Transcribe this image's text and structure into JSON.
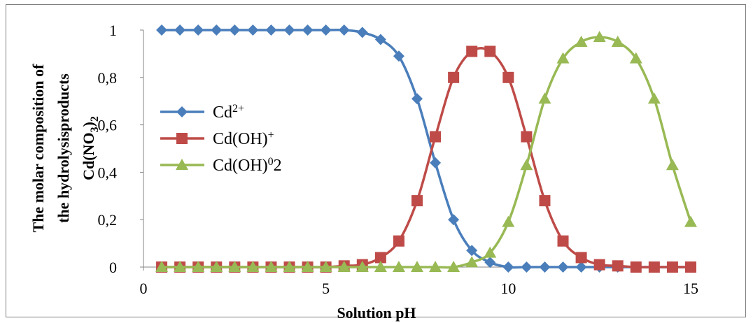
{
  "chart_data": {
    "type": "line",
    "xlabel": "Solution pH",
    "ylabel_lines": [
      "The molar composition of",
      "the hydrolysisproducts",
      "Cd(NO3)2"
    ],
    "xlim": [
      0,
      15
    ],
    "ylim": [
      0,
      1
    ],
    "xticks": [
      "0",
      "5",
      "10",
      "15"
    ],
    "yticks": [
      "0",
      "0,2",
      "0,4",
      "0,6",
      "0,8",
      "1"
    ],
    "grid": false,
    "legend_position": "left-middle",
    "x": [
      0.5,
      1,
      1.5,
      2,
      2.5,
      3,
      3.5,
      4,
      4.5,
      5,
      5.5,
      6,
      6.5,
      7,
      7.5,
      8,
      8.5,
      9,
      9.5,
      10,
      10.5,
      11,
      11.5,
      12,
      12.5,
      13,
      13.5,
      14,
      14.5,
      15
    ],
    "series": [
      {
        "name": "Cd2+",
        "label_base": "Cd",
        "label_sup": "2+",
        "label_sub": "",
        "color": "#4a7ebb",
        "marker": "diamond",
        "values": [
          1,
          1,
          1,
          1,
          1,
          1,
          1,
          1,
          1,
          1,
          1,
          0.99,
          0.96,
          0.89,
          0.71,
          0.44,
          0.2,
          0.07,
          0.02,
          0,
          0,
          0,
          0,
          0,
          0,
          0,
          0,
          0,
          0,
          0
        ]
      },
      {
        "name": "Cd(OH)+",
        "label_base": "Cd(OH)",
        "label_sup": "+",
        "label_sub": "",
        "color": "#be4b48",
        "marker": "square",
        "values": [
          0,
          0,
          0,
          0,
          0,
          0,
          0,
          0,
          0,
          0,
          0.005,
          0.01,
          0.04,
          0.11,
          0.28,
          0.55,
          0.8,
          0.91,
          0.91,
          0.8,
          0.55,
          0.28,
          0.11,
          0.04,
          0.01,
          0.005,
          0,
          0,
          0,
          0
        ]
      },
      {
        "name": "Cd(OH)02",
        "label_base": "Cd(OH)",
        "label_sup": "0",
        "label_sub": "2",
        "color": "#98b954",
        "marker": "triangle",
        "values": [
          0,
          0,
          0,
          0,
          0,
          0,
          0,
          0,
          0,
          0,
          0,
          0,
          0,
          0,
          0,
          0,
          0,
          0.02,
          0.06,
          0.19,
          0.43,
          0.71,
          0.88,
          0.95,
          0.97,
          0.95,
          0.88,
          0.71,
          0.43,
          0.19
        ]
      }
    ]
  }
}
